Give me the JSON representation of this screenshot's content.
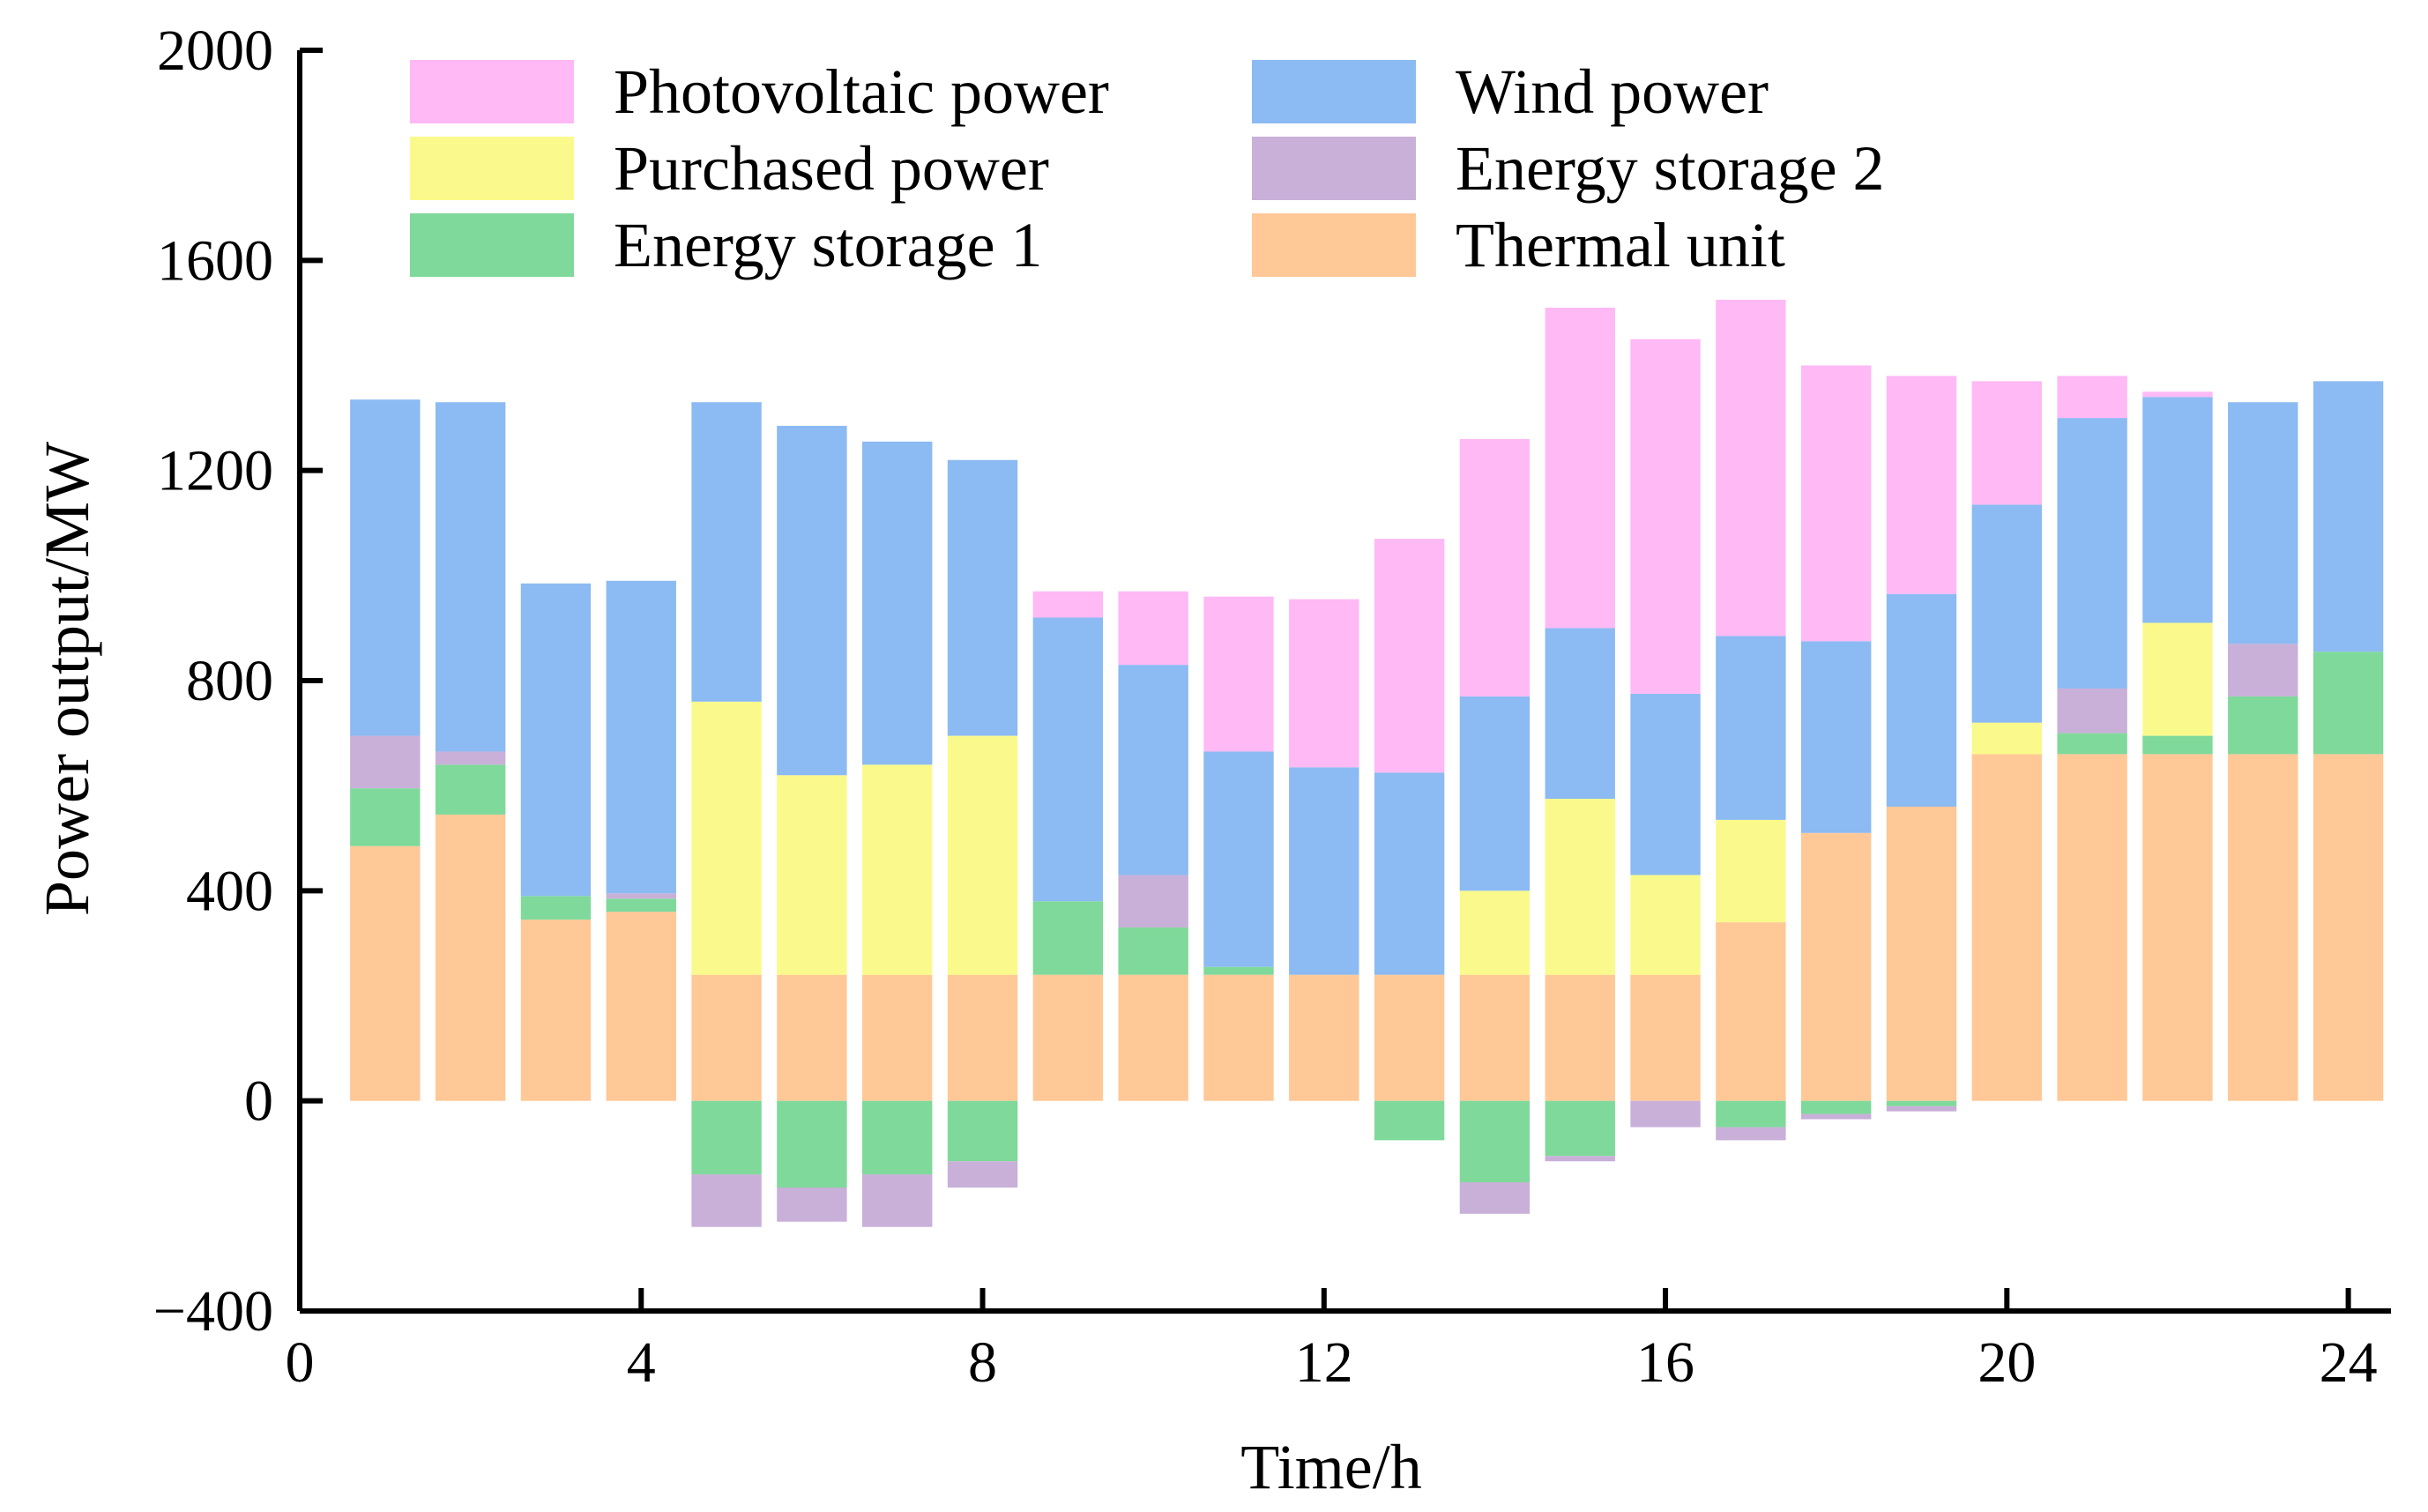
{
  "chart_data": {
    "type": "bar",
    "stacked": true,
    "title": "",
    "xlabel": "Time/h",
    "ylabel": "Power output/MW",
    "xlim": [
      0,
      24.5
    ],
    "ylim": [
      -400,
      2000
    ],
    "xticks": [
      0,
      4,
      8,
      12,
      16,
      20,
      24
    ],
    "yticks": [
      -400,
      0,
      400,
      800,
      1200,
      1600,
      2000
    ],
    "x": [
      1,
      2,
      3,
      4,
      5,
      6,
      7,
      8,
      9,
      10,
      11,
      12,
      13,
      14,
      15,
      16,
      17,
      18,
      19,
      20,
      21,
      22,
      23,
      24
    ],
    "legend_position": "top",
    "series": [
      {
        "name": "Thermal unit",
        "color": "#FFC896",
        "values": [
          485,
          545,
          345,
          360,
          240,
          240,
          240,
          240,
          240,
          240,
          240,
          240,
          240,
          240,
          240,
          240,
          340,
          510,
          560,
          660,
          660,
          660,
          660,
          660
        ]
      },
      {
        "name": "Energy storage 1",
        "color": "#7FD99B",
        "values": [
          110,
          95,
          45,
          25,
          -140,
          -165,
          -140,
          -115,
          140,
          90,
          15,
          0,
          -75,
          -155,
          -105,
          0,
          -50,
          -25,
          -10,
          0,
          40,
          35,
          110,
          195
        ]
      },
      {
        "name": "Energy storage 2",
        "color": "#C8B0D8",
        "values": [
          100,
          25,
          0,
          10,
          -100,
          -65,
          -100,
          -50,
          0,
          100,
          0,
          0,
          0,
          -60,
          -10,
          -50,
          -25,
          -10,
          -10,
          0,
          85,
          0,
          100,
          0
        ]
      },
      {
        "name": "Purchased power",
        "color": "#FAFA8C",
        "values": [
          0,
          0,
          0,
          0,
          520,
          380,
          400,
          455,
          0,
          0,
          0,
          0,
          0,
          160,
          335,
          190,
          195,
          0,
          0,
          60,
          0,
          215,
          0,
          0
        ]
      },
      {
        "name": "Wind power",
        "color": "#8CBAF2",
        "values": [
          640,
          665,
          595,
          595,
          570,
          665,
          615,
          525,
          540,
          400,
          410,
          395,
          385,
          370,
          325,
          345,
          350,
          365,
          405,
          415,
          515,
          430,
          460,
          515
        ]
      },
      {
        "name": "Photovoltaic power",
        "color": "#FFB9F5",
        "values": [
          0,
          0,
          0,
          0,
          0,
          0,
          0,
          0,
          50,
          140,
          295,
          320,
          445,
          490,
          610,
          675,
          640,
          525,
          415,
          235,
          80,
          10,
          0,
          0
        ]
      }
    ],
    "legend": [
      {
        "label": "Photovoltaic power",
        "color": "#FFB9F5"
      },
      {
        "label": "Wind power",
        "color": "#8CBAF2"
      },
      {
        "label": "Purchased power",
        "color": "#FAFA8C"
      },
      {
        "label": "Energy storage 2",
        "color": "#C8B0D8"
      },
      {
        "label": "Energy storage 1",
        "color": "#7FD99B"
      },
      {
        "label": "Thermal unit",
        "color": "#FFC896"
      }
    ]
  }
}
